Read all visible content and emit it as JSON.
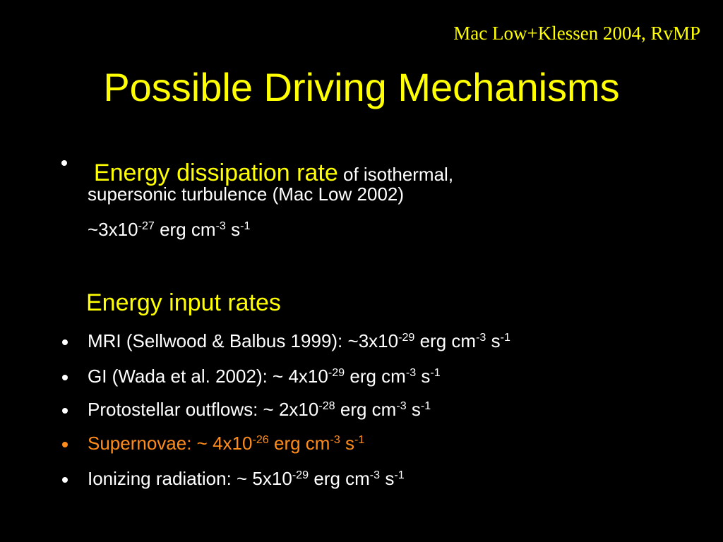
{
  "citation": "Mac Low+Klessen 2004, RvMP",
  "title": "Possible Driving Mechanisms",
  "dissipation": {
    "lead": "Energy dissipation rate",
    "rest": " of isothermal,",
    "line2": "supersonic turbulence (Mac Low 2002)",
    "rate": [
      {
        "text": "~3x10"
      },
      {
        "sup": "-27"
      },
      {
        "text": " erg cm"
      },
      {
        "sup": "-3"
      },
      {
        "text": " s"
      },
      {
        "sup": "-1"
      }
    ]
  },
  "input_heading": "Energy input rates",
  "inputs": [
    {
      "color": "#ffffff",
      "runs": [
        {
          "text": "MRI (Sellwood & Balbus 1999): ~3x10"
        },
        {
          "sup": "-29"
        },
        {
          "text": " erg cm"
        },
        {
          "sup": "-3"
        },
        {
          "text": " s"
        },
        {
          "sup": "-1"
        }
      ]
    },
    {
      "color": "#ffffff",
      "runs": [
        {
          "text": "GI (Wada et al. 2002): ~ 4x10"
        },
        {
          "sup": "-29"
        },
        {
          "text": " erg cm"
        },
        {
          "sup": "-3"
        },
        {
          "text": " s"
        },
        {
          "sup": "-1"
        }
      ]
    },
    {
      "color": "#ffffff",
      "runs": [
        {
          "text": "Protostellar outflows: ~ 2x10"
        },
        {
          "sup": "-28"
        },
        {
          "text": " erg cm"
        },
        {
          "sup": "-3"
        },
        {
          "text": " s"
        },
        {
          "sup": "-1"
        }
      ]
    },
    {
      "color": "#ff8c1a",
      "runs": [
        {
          "text": "Supernovae: ~ 4x10"
        },
        {
          "sup": "-26"
        },
        {
          "text": " erg cm"
        },
        {
          "sup": "-3"
        },
        {
          "text": " s"
        },
        {
          "sup": "-1"
        }
      ]
    },
    {
      "color": "#ffffff",
      "runs": [
        {
          "text": "Ionizing radiation: ~ 5x10"
        },
        {
          "sup": "-29"
        },
        {
          "text": " erg cm"
        },
        {
          "sup": "-3"
        },
        {
          "text": " s"
        },
        {
          "sup": "-1"
        }
      ]
    }
  ]
}
